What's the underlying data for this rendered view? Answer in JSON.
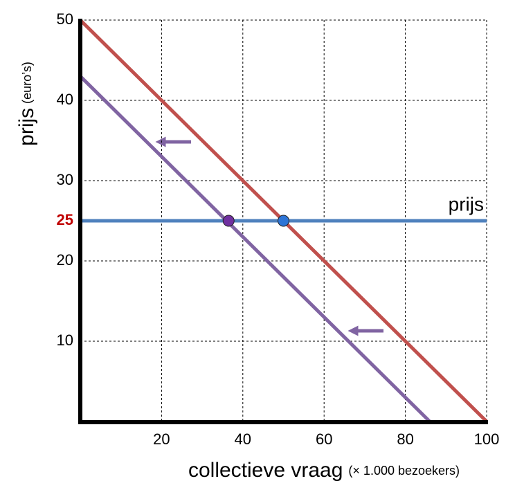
{
  "chart_data": {
    "type": "line",
    "y_label": "prijs",
    "y_label_unit": "(euro’s)",
    "x_label": "collectieve vraag",
    "x_label_unit": "(× 1.000 bezoekers)",
    "xlim": [
      0,
      100
    ],
    "ylim": [
      0,
      50
    ],
    "xticks": [
      20,
      40,
      60,
      80,
      100
    ],
    "yticks": [
      10,
      20,
      30,
      40,
      50
    ],
    "price_tick": 25,
    "price_tick_color": "#c00000",
    "grid": true,
    "series": [
      {
        "color": "#c0504d",
        "x": [
          0,
          100
        ],
        "values": [
          50,
          0
        ]
      },
      {
        "color": "#8064a2",
        "x": [
          0,
          86
        ],
        "values": [
          43,
          0
        ]
      },
      {
        "name": "prijs",
        "color": "#4f81bd",
        "x": [
          0,
          100
        ],
        "values": [
          25,
          25
        ]
      }
    ],
    "points": [
      {
        "x": 36.5,
        "y": 25,
        "color": "#7030a0"
      },
      {
        "x": 50,
        "y": 25,
        "color": "#2e75d6"
      }
    ]
  }
}
